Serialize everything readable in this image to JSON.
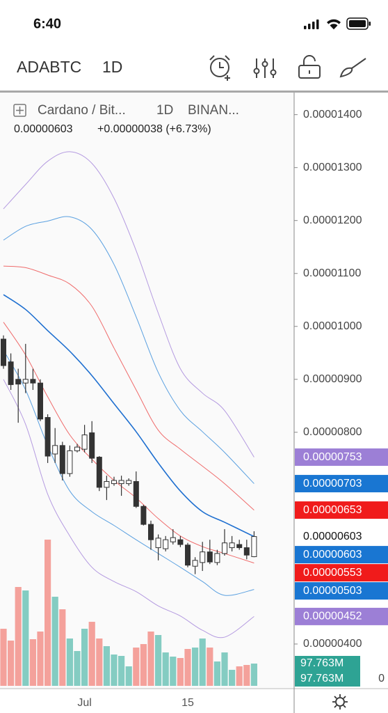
{
  "status_bar": {
    "time": "6:40"
  },
  "toolbar": {
    "symbol": "ADABTC",
    "interval": "1D"
  },
  "legend": {
    "symbol": "Cardano / Bit...",
    "interval": "1D",
    "exchange": "BINAN...",
    "last": "0.00000603",
    "change": "+0.00000038 (+6.73%)"
  },
  "chart_data": {
    "type": "candlestick",
    "categories": [
      null,
      null,
      null,
      null,
      null,
      null,
      null,
      null,
      null,
      null,
      null,
      "Jul",
      null,
      null,
      null,
      null,
      null,
      null,
      null,
      null,
      null,
      null,
      null,
      null,
      null,
      "15",
      null,
      null,
      null,
      null,
      null,
      null,
      null,
      null,
      null
    ],
    "open": [
      9.76e-06,
      9.33e-06,
      9e-06,
      8.93e-06,
      9e-06,
      8.93e-06,
      8.28e-06,
      7.59e-06,
      7.75e-06,
      7.22e-06,
      7.65e-06,
      7.68e-06,
      7.99e-06,
      7.53e-06,
      6.96e-06,
      7.03e-06,
      7.03e-06,
      7.03e-06,
      7.07e-06,
      6.6e-06,
      6.26e-06,
      5.82e-06,
      5.8e-06,
      5.93e-06,
      5.97e-06,
      5.87e-06,
      5.47e-06,
      5.54e-06,
      5.74e-06,
      5.54e-06,
      5.71e-06,
      5.82e-06,
      5.88e-06,
      5.82e-06,
      5.65e-06
    ],
    "high": [
      9.83e-06,
      9.49e-06,
      9.2e-06,
      9.67e-06,
      9.2e-06,
      9e-06,
      8.34e-06,
      8.08e-06,
      7.82e-06,
      7.75e-06,
      7.78e-06,
      8.14e-06,
      8.21e-06,
      7.55e-06,
      7.18e-06,
      7.16e-06,
      7.18e-06,
      7.13e-06,
      7.26e-06,
      6.63e-06,
      6.33e-06,
      6.07e-06,
      6.04e-06,
      6.17e-06,
      6.04e-06,
      5.91e-06,
      5.64e-06,
      5.93e-06,
      5.97e-06,
      5.78e-06,
      6.17e-06,
      6.04e-06,
      5.97e-06,
      5.97e-06,
      6.13e-06
    ],
    "low": [
      9.2e-06,
      8.8e-06,
      8.18e-06,
      8.74e-06,
      8.8e-06,
      8.21e-06,
      7.42e-06,
      7.42e-06,
      7.09e-06,
      7.16e-06,
      7.62e-06,
      7.62e-06,
      7.42e-06,
      6.89e-06,
      6.72e-06,
      6.99e-06,
      6.8e-06,
      6.99e-06,
      6.57e-06,
      6.24e-06,
      5.78e-06,
      5.58e-06,
      5.75e-06,
      5.88e-06,
      5.83e-06,
      5.45e-06,
      5.32e-06,
      5.38e-06,
      5.51e-06,
      5.49e-06,
      5.67e-06,
      5.75e-06,
      5.78e-06,
      5.6e-06,
      5.64e-06
    ],
    "close": [
      9.26e-06,
      8.9e-06,
      8.91e-06,
      9e-06,
      8.93e-06,
      8.25e-06,
      7.55e-06,
      7.75e-06,
      7.22e-06,
      7.65e-06,
      7.72e-06,
      7.95e-06,
      7.51e-06,
      6.96e-06,
      7.07e-06,
      7.09e-06,
      7.09e-06,
      7.09e-06,
      6.6e-06,
      6.26e-06,
      5.97e-06,
      6e-06,
      5.97e-06,
      6.01e-06,
      5.88e-06,
      5.49e-06,
      5.58e-06,
      5.74e-06,
      5.55e-06,
      5.71e-06,
      5.91e-06,
      5.91e-06,
      5.82e-06,
      5.68e-06,
      6.03e-06
    ],
    "up_color": "#ffffff",
    "down_color": "#333333",
    "ylim": [
      3.21e-06,
      1.439e-05
    ],
    "yticks": [
      {
        "value": 1.4e-05,
        "label": "0.00001400"
      },
      {
        "value": 1.3e-05,
        "label": "0.00001300"
      },
      {
        "value": 1.2e-05,
        "label": "0.00001200"
      },
      {
        "value": 1.1e-05,
        "label": "0.00001100"
      },
      {
        "value": 1e-05,
        "label": "0.00001000"
      },
      {
        "value": 9e-06,
        "label": "0.00000900"
      },
      {
        "value": 8e-06,
        "label": "0.00000800"
      },
      {
        "value": 4e-06,
        "label": "0.00000400"
      }
    ],
    "band_x": [
      0,
      3,
      6,
      9,
      12,
      15,
      18,
      21,
      24,
      27,
      30,
      34
    ],
    "bands": [
      {
        "color": "#b49ae0",
        "values": [
          1.222e-05,
          1.268e-05,
          1.312e-05,
          1.33e-05,
          1.308e-05,
          1.242e-05,
          1.143e-05,
          1.025e-05,
          9.2e-06,
          8.74e-06,
          8.41e-06,
          7.53e-06
        ]
      },
      {
        "color": "#5aa0e0",
        "values": [
          1.163e-05,
          1.189e-05,
          1.199e-05,
          1.207e-05,
          1.183e-05,
          1.117e-05,
          1.018e-05,
          9.13e-06,
          8.41e-06,
          8.01e-06,
          7.62e-06,
          7.03e-06
        ]
      },
      {
        "color": "#ef6b6b",
        "values": [
          1.114e-05,
          1.111e-05,
          1.097e-05,
          1.08e-05,
          1.038e-05,
          9.59e-06,
          8.8e-06,
          8.04e-06,
          7.68e-06,
          7.36e-06,
          7.03e-06,
          6.53e-06
        ]
      },
      {
        "color": "#1e6fd0",
        "values": [
          1.06e-05,
          1.032e-05,
          9.92e-06,
          9.53e-06,
          9.07e-06,
          8.54e-06,
          8.01e-06,
          7.42e-06,
          6.89e-06,
          6.5e-06,
          6.3e-06,
          6.03e-06
        ]
      },
      {
        "color": "#ef6b6b",
        "values": [
          1.008e-05,
          9.46e-06,
          8.67e-06,
          7.95e-06,
          7.49e-06,
          7.09e-06,
          6.76e-06,
          6.37e-06,
          6.04e-06,
          5.84e-06,
          5.71e-06,
          5.53e-06
        ]
      },
      {
        "color": "#5aa0e0",
        "values": [
          9.55e-06,
          8.8e-06,
          7.75e-06,
          6.89e-06,
          6.5e-06,
          6.24e-06,
          5.97e-06,
          5.71e-06,
          5.45e-06,
          5.18e-06,
          4.92e-06,
          5.03e-06
        ]
      },
      {
        "color": "#b49ae0",
        "values": [
          9e-06,
          8.15e-06,
          6.83e-06,
          6.04e-06,
          5.45e-06,
          5.18e-06,
          4.99e-06,
          4.72e-06,
          4.53e-06,
          4.26e-06,
          4.13e-06,
          4.52e-06
        ]
      }
    ],
    "price_labels": [
      {
        "value": 7.53e-06,
        "label": "0.00000753",
        "color": "#9c7fd6"
      },
      {
        "value": 7.03e-06,
        "label": "0.00000703",
        "color": "#1976d2"
      },
      {
        "value": 6.53e-06,
        "label": "0.00000653",
        "color": "#f01b1b"
      },
      {
        "value": 6.03e-06,
        "label": "0.00000603",
        "color": "#ffffff"
      },
      {
        "value": 6.03e-06,
        "label": "0.00000603",
        "color": "#1976d2"
      },
      {
        "value": 5.53e-06,
        "label": "0.00000553",
        "color": "#f01b1b"
      },
      {
        "value": 5.03e-06,
        "label": "0.00000503",
        "color": "#1976d2"
      },
      {
        "value": 4.52e-06,
        "label": "0.00000452",
        "color": "#9c7fd6"
      }
    ],
    "volume": {
      "values": [
        250.5,
        198.6,
        433.8,
        418.5,
        204.7,
        238.3,
        641.6,
        391,
        336,
        207.7,
        152.8,
        250.5,
        281,
        207.7,
        174.1,
        137.5,
        131.4,
        85.5,
        168,
        183.3,
        238.3,
        223,
        146.6,
        128.3,
        122.2,
        161.9,
        168,
        207.7,
        168,
        106.9,
        146.6,
        70.3,
        85.5,
        91.7,
        97.763
      ],
      "up_color": "#84ccc2",
      "down_color": "#f4a19b",
      "ylim": [
        0,
        2597
      ],
      "yticks": [
        0
      ],
      "labels": [
        {
          "value": 97.763,
          "label": "97.763M"
        },
        {
          "value": 97.763,
          "label": "97.763M"
        }
      ],
      "label_color": "#2ea394"
    }
  }
}
